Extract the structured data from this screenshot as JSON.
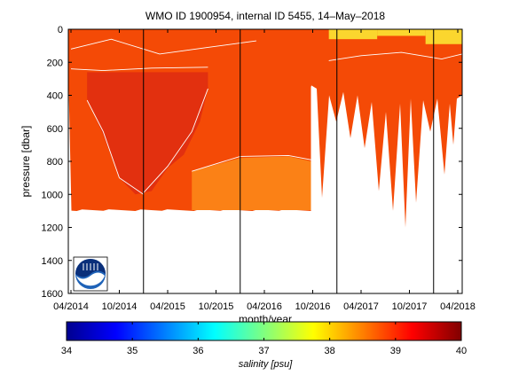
{
  "chart_data": [
    {
      "type": "heatmap",
      "title": "WMO ID 1900954, internal ID 5455, 14–May–2018",
      "xlabel": "month/year",
      "ylabel": "pressure [dbar]",
      "x_ticks": [
        "04/2014",
        "10/2014",
        "04/2015",
        "10/2015",
        "04/2016",
        "10/2016",
        "04/2017",
        "10/2017",
        "04/2018"
      ],
      "y_ticks": [
        "0",
        "200",
        "400",
        "600",
        "800",
        "1000",
        "1200",
        "1400",
        "1600"
      ],
      "ylim": [
        1600,
        0
      ],
      "y_reversed": true,
      "colorbar": {
        "label": "salinity [psu]",
        "ticks": [
          "34",
          "35",
          "36",
          "37",
          "38",
          "39",
          "40"
        ],
        "range": [
          34,
          40
        ]
      },
      "regions": [
        {
          "x": [
            "04/2014",
            "10/2016"
          ],
          "pressure": [
            0,
            1100
          ],
          "salinity": 38.7
        },
        {
          "x": [
            "04/2014",
            "10/2015"
          ],
          "pressure": [
            230,
            1000
          ],
          "salinity": 39.0
        },
        {
          "x": [
            "06/2015",
            "10/2016"
          ],
          "pressure": [
            750,
            1100
          ],
          "salinity": 38.3
        },
        {
          "x": [
            "10/2016",
            "05/2018"
          ],
          "pressure": [
            0,
            1200
          ],
          "salinity": 38.7
        },
        {
          "x": [
            "12/2016",
            "05/2018"
          ],
          "pressure": [
            0,
            200
          ],
          "salinity": 37.8
        }
      ],
      "year_markers": [
        "01/2015",
        "01/2016",
        "01/2017",
        "01/2018"
      ],
      "colors": {
        "deep_red": "#e2300f",
        "red_orange": "#f44a06",
        "orange": "#fb8116",
        "yellow": "#fbee36"
      }
    }
  ],
  "logo": {
    "name": "NOAA"
  }
}
